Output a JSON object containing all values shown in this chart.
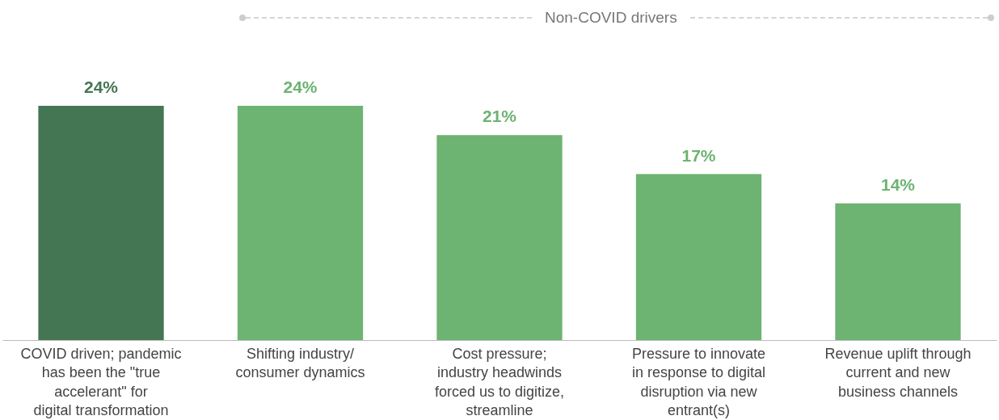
{
  "chart_data": {
    "type": "bar",
    "categories": [
      "COVID driven; pandemic has been the \"true accelerant\" for  digital transformation",
      "Shifting industry/ consumer dynamics",
      "Cost pressure; industry headwinds forced us to digitize, streamline",
      "Pressure to innovate in response to digital disruption via new entrant(s)",
      "Revenue uplift through current and new business channels"
    ],
    "values": [
      24,
      24,
      21,
      17,
      14
    ],
    "colors": [
      "#457654",
      "#6db372",
      "#6db372",
      "#6db372",
      "#6db372"
    ],
    "value_labels": [
      "24%",
      "24%",
      "21%",
      "17%",
      "14%"
    ],
    "tick_labels": "x",
    "annotations": [
      "Non-COVID drivers"
    ]
  }
}
